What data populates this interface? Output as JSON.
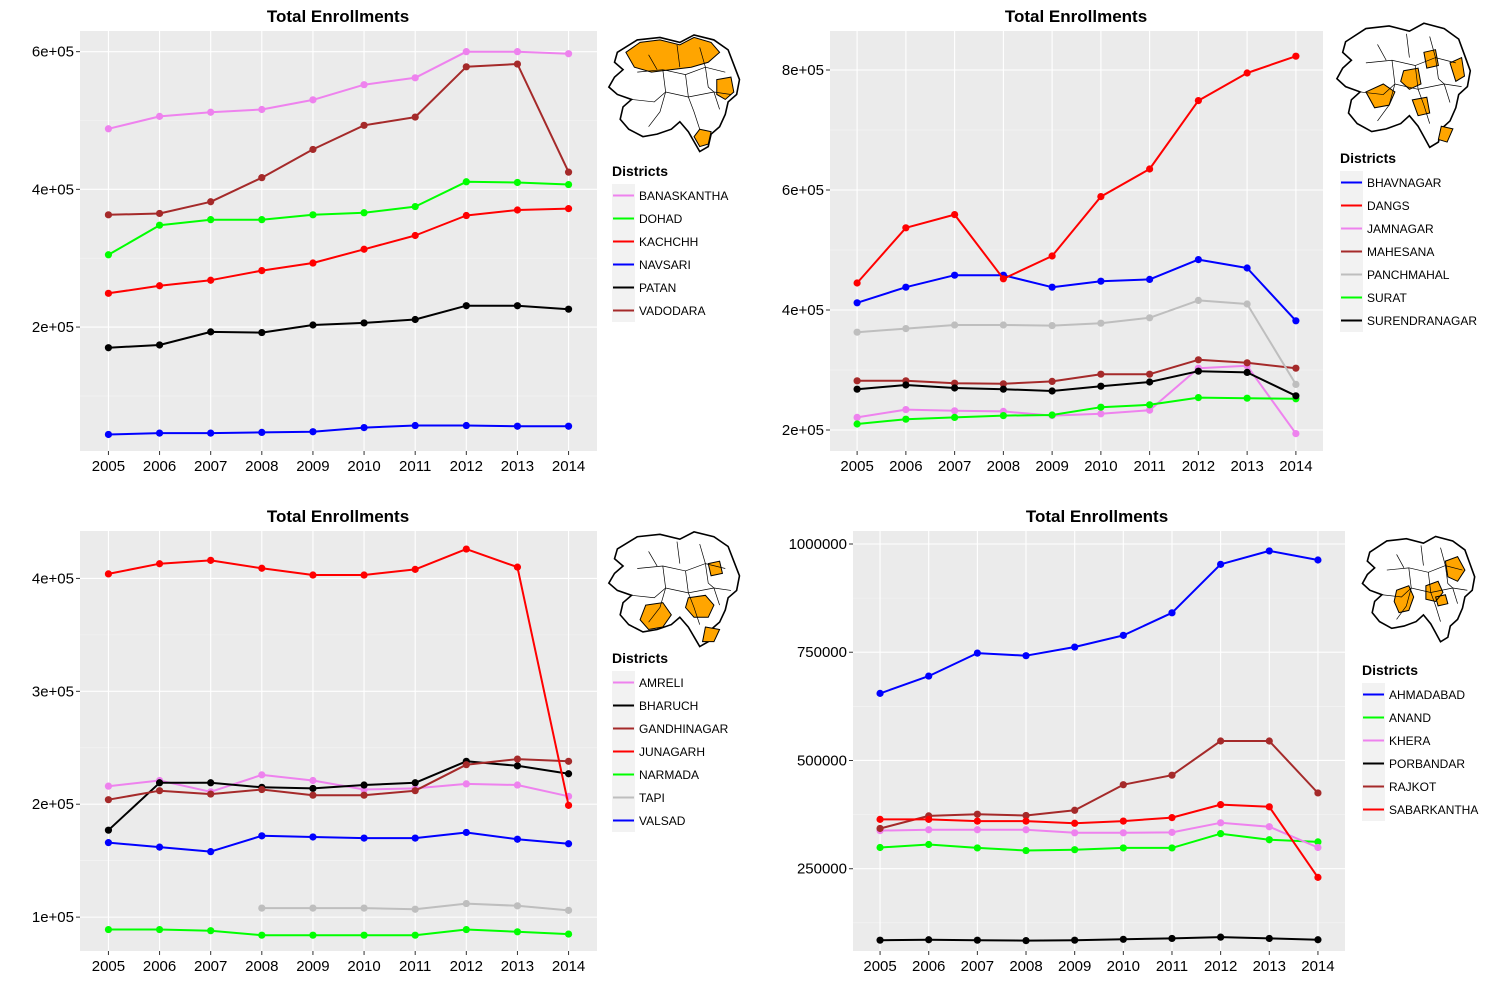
{
  "chart_data": [
    {
      "type": "line",
      "title": "Total Enrollments",
      "xlabel": "",
      "ylabel": "",
      "x": [
        2005,
        2006,
        2007,
        2008,
        2009,
        2010,
        2011,
        2012,
        2013,
        2014
      ],
      "ylim": [
        20000,
        630000
      ],
      "yticks": [
        200000,
        400000,
        600000
      ],
      "ytick_labels": [
        "2e+05",
        "4e+05",
        "6e+05"
      ],
      "legend_title": "Districts",
      "legend_position": "right",
      "map_highlight": "north",
      "series": [
        {
          "name": "BANASKANTHA",
          "color": "#ee82ee",
          "values": [
            488000,
            506000,
            512000,
            516000,
            530000,
            552000,
            562000,
            600000,
            600000,
            597000
          ]
        },
        {
          "name": "DOHAD",
          "color": "#00ff00",
          "values": [
            305000,
            348000,
            356000,
            356000,
            363000,
            366000,
            375000,
            411000,
            410000,
            407000
          ]
        },
        {
          "name": "KACHCHH",
          "color": "#ff0000",
          "values": [
            249000,
            260000,
            268000,
            282000,
            293000,
            313000,
            333000,
            362000,
            370000,
            372000
          ]
        },
        {
          "name": "NAVSARI",
          "color": "#0000ff",
          "values": [
            44000,
            46000,
            46000,
            47000,
            48000,
            54000,
            57000,
            57000,
            56000,
            56000
          ]
        },
        {
          "name": "PATAN",
          "color": "#000000",
          "values": [
            170000,
            174000,
            193000,
            192000,
            203000,
            206000,
            211000,
            231000,
            231000,
            226000
          ]
        },
        {
          "name": "VADODARA",
          "color": "#a52a2a",
          "values": [
            363000,
            365000,
            382000,
            417000,
            458000,
            493000,
            505000,
            578000,
            582000,
            425000
          ]
        }
      ]
    },
    {
      "type": "line",
      "title": "Total Enrollments",
      "xlabel": "",
      "ylabel": "",
      "x": [
        2005,
        2006,
        2007,
        2008,
        2009,
        2010,
        2011,
        2012,
        2013,
        2014
      ],
      "ylim": [
        165000,
        865000
      ],
      "yticks": [
        200000,
        400000,
        600000,
        800000
      ],
      "ytick_labels": [
        "2e+05",
        "4e+05",
        "6e+05",
        "8e+05"
      ],
      "legend_title": "Districts",
      "legend_position": "right",
      "map_highlight": "central",
      "series": [
        {
          "name": "BHAVNAGAR",
          "color": "#0000ff",
          "values": [
            412000,
            438000,
            458000,
            458000,
            438000,
            448000,
            451000,
            484000,
            470000,
            382000
          ]
        },
        {
          "name": "DANGS",
          "color": "#ff0000",
          "values": [
            445000,
            537000,
            559000,
            452000,
            490000,
            589000,
            635000,
            749000,
            795000,
            823000
          ]
        },
        {
          "name": "JAMNAGAR",
          "color": "#ee82ee",
          "values": [
            221000,
            234000,
            232000,
            231000,
            224000,
            227000,
            233000,
            303000,
            307000,
            194000
          ]
        },
        {
          "name": "MAHESANA",
          "color": "#a52a2a",
          "values": [
            282000,
            282000,
            278000,
            277000,
            281000,
            293000,
            293000,
            317000,
            312000,
            303000
          ]
        },
        {
          "name": "PANCHMAHAL",
          "color": "#bebebe",
          "values": [
            363000,
            369000,
            375000,
            375000,
            374000,
            378000,
            387000,
            416000,
            410000,
            276000
          ]
        },
        {
          "name": "SURAT",
          "color": "#00ff00",
          "values": [
            210000,
            218000,
            221000,
            224000,
            225000,
            238000,
            242000,
            254000,
            253000,
            252000
          ]
        },
        {
          "name": "SURENDRANAGAR",
          "color": "#000000",
          "values": [
            268000,
            275000,
            270000,
            268000,
            265000,
            273000,
            280000,
            298000,
            296000,
            257000
          ]
        }
      ]
    },
    {
      "type": "line",
      "title": "Total Enrollments",
      "xlabel": "",
      "ylabel": "",
      "x": [
        2005,
        2006,
        2007,
        2008,
        2009,
        2010,
        2011,
        2012,
        2013,
        2014
      ],
      "ylim": [
        70000,
        442000
      ],
      "yticks": [
        100000,
        200000,
        300000,
        400000
      ],
      "ytick_labels": [
        "1e+05",
        "2e+05",
        "3e+05",
        "4e+05"
      ],
      "legend_title": "Districts",
      "legend_position": "right",
      "map_highlight": "south",
      "series": [
        {
          "name": "AMRELI",
          "color": "#ee82ee",
          "values": [
            216000,
            221000,
            211000,
            226000,
            221000,
            213000,
            214000,
            218000,
            217000,
            207000
          ]
        },
        {
          "name": "BHARUCH",
          "color": "#000000",
          "values": [
            177000,
            219000,
            219000,
            215000,
            214000,
            217000,
            219000,
            238000,
            234000,
            227000
          ]
        },
        {
          "name": "GANDHINAGAR",
          "color": "#a52a2a",
          "values": [
            204000,
            212000,
            209000,
            213000,
            208000,
            208000,
            212000,
            235000,
            240000,
            238000
          ]
        },
        {
          "name": "JUNAGARH",
          "color": "#ff0000",
          "values": [
            404000,
            413000,
            416000,
            409000,
            403000,
            403000,
            408000,
            426000,
            410000,
            199000
          ]
        },
        {
          "name": "NARMADA",
          "color": "#00ff00",
          "values": [
            89000,
            89000,
            88000,
            84000,
            84000,
            84000,
            84000,
            89000,
            87000,
            85000
          ]
        },
        {
          "name": "TAPI",
          "color": "#bebebe",
          "values": [
            null,
            null,
            null,
            108000,
            108000,
            108000,
            107000,
            112000,
            110000,
            106000
          ]
        },
        {
          "name": "VALSAD",
          "color": "#0000ff",
          "values": [
            166000,
            162000,
            158000,
            172000,
            171000,
            170000,
            170000,
            175000,
            169000,
            165000
          ]
        }
      ]
    },
    {
      "type": "line",
      "title": "Total Enrollments",
      "xlabel": "",
      "ylabel": "",
      "x": [
        2005,
        2006,
        2007,
        2008,
        2009,
        2010,
        2011,
        2012,
        2013,
        2014
      ],
      "ylim": [
        60000,
        1030000
      ],
      "yticks": [
        250000,
        500000,
        750000,
        1000000
      ],
      "ytick_labels": [
        "250000",
        "500000",
        "750000",
        "1000000"
      ],
      "legend_title": "Districts",
      "legend_position": "right",
      "map_highlight": "east",
      "series": [
        {
          "name": "AHMADABAD",
          "color": "#0000ff",
          "values": [
            655000,
            695000,
            748000,
            742000,
            762000,
            789000,
            841000,
            953000,
            984000,
            963000
          ]
        },
        {
          "name": "ANAND",
          "color": "#00ff00",
          "values": [
            299000,
            306000,
            298000,
            292000,
            294000,
            298000,
            298000,
            331000,
            317000,
            312000
          ]
        },
        {
          "name": "KHERA",
          "color": "#ee82ee",
          "values": [
            338000,
            340000,
            340000,
            340000,
            333000,
            333000,
            334000,
            356000,
            347000,
            299000
          ]
        },
        {
          "name": "PORBANDAR",
          "color": "#000000",
          "values": [
            85000,
            86000,
            85000,
            84000,
            85000,
            87000,
            89000,
            92000,
            89000,
            86000
          ]
        },
        {
          "name": "RAJKOT",
          "color": "#a52a2a",
          "values": [
            343000,
            372000,
            376000,
            373000,
            385000,
            444000,
            466000,
            545000,
            545000,
            425000
          ]
        },
        {
          "name": "SABARKANTHA",
          "color": "#ff0000",
          "values": [
            364000,
            364000,
            360000,
            360000,
            355000,
            360000,
            368000,
            398000,
            393000,
            230000
          ]
        }
      ]
    }
  ]
}
